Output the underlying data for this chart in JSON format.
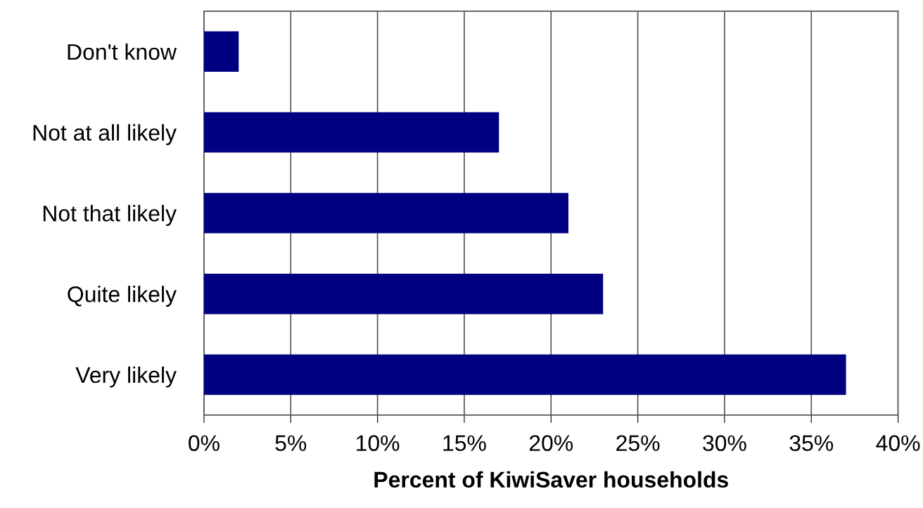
{
  "chart_data": {
    "type": "bar",
    "orientation": "horizontal",
    "categories": [
      "Don't know",
      "Not at all likely",
      "Not that likely",
      "Quite likely",
      "Very likely"
    ],
    "values": [
      2,
      17,
      21,
      23,
      37
    ],
    "color": "#000080",
    "xlabel": "Percent of KiwiSaver households",
    "xlim": [
      0,
      40
    ],
    "xticks": [
      {
        "value": 0,
        "label": "0%"
      },
      {
        "value": 5,
        "label": "5%"
      },
      {
        "value": 10,
        "label": "10%"
      },
      {
        "value": 15,
        "label": "15%"
      },
      {
        "value": 20,
        "label": "20%"
      },
      {
        "value": 25,
        "label": "25%"
      },
      {
        "value": 30,
        "label": "30%"
      },
      {
        "value": 35,
        "label": "35%"
      },
      {
        "value": 40,
        "label": "40%"
      }
    ],
    "grid": "x"
  }
}
